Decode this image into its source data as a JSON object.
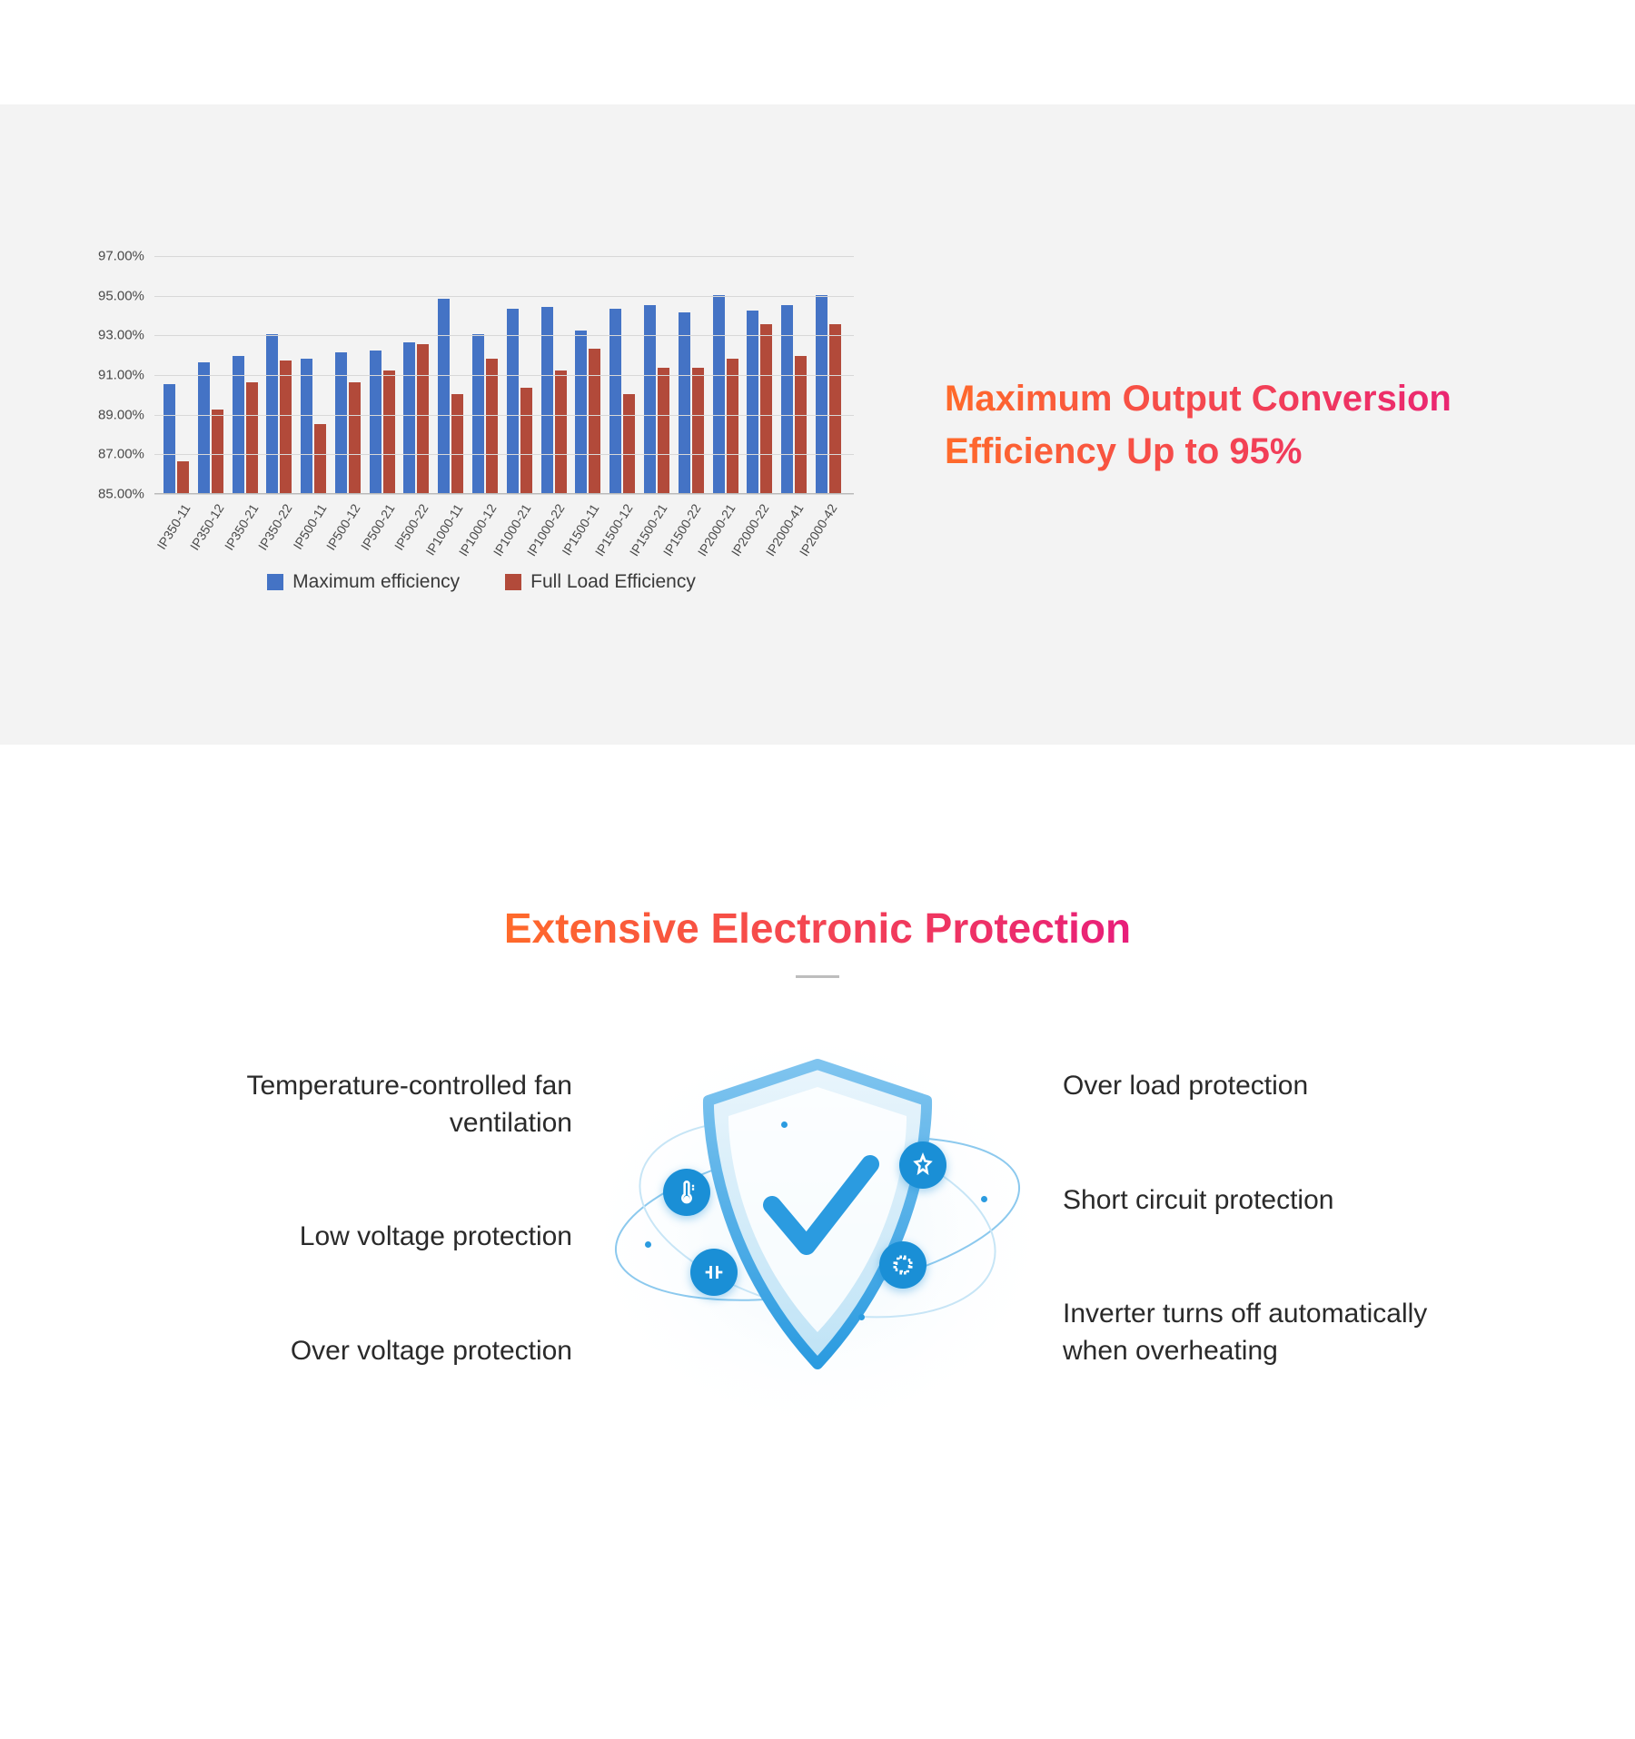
{
  "section1": {
    "title": "Maximum Output Conversion Efficiency Up to 95%",
    "chart": {
      "type": "bar",
      "ylim": [
        85,
        97
      ],
      "ytick_step": 2,
      "yticklabels": [
        "85.00%",
        "87.00%",
        "89.00%",
        "91.00%",
        "93.00%",
        "95.00%",
        "97.00%"
      ],
      "grid_color": "#d8d8d8",
      "axis_color": "#b9b9b9",
      "colors": {
        "max": "#4473c5",
        "full": "#b24a3a"
      },
      "legend": [
        {
          "label": "Maximum efficiency",
          "key": "max"
        },
        {
          "label": "Full Load Efficiency",
          "key": "full"
        }
      ],
      "categories": [
        "IP350-11",
        "IP350-12",
        "IP350-21",
        "IP350-22",
        "IP500-11",
        "IP500-12",
        "IP500-21",
        "IP500-22",
        "IP1000-11",
        "IP1000-12",
        "IP1000-21",
        "IP1000-22",
        "IP1500-11",
        "IP1500-12",
        "IP1500-21",
        "IP1500-22",
        "IP2000-21",
        "IP2000-22",
        "IP2000-41",
        "IP2000-42"
      ],
      "series": {
        "max": [
          90.5,
          91.6,
          91.9,
          93.0,
          91.8,
          92.1,
          92.2,
          92.6,
          94.8,
          93.0,
          94.3,
          94.4,
          93.2,
          94.3,
          94.5,
          94.1,
          95.0,
          94.2,
          94.5,
          95.0
        ],
        "full": [
          86.6,
          89.2,
          90.6,
          91.7,
          88.5,
          90.6,
          91.2,
          92.5,
          90.0,
          91.8,
          90.3,
          91.2,
          92.3,
          90.0,
          91.3,
          91.3,
          91.8,
          93.5,
          91.9,
          93.5
        ]
      }
    }
  },
  "section2": {
    "title": "Extensive Electronic Protection",
    "features_left": [
      "Temperature-controlled fan ventilation",
      "Low voltage protection",
      "Over voltage protection"
    ],
    "features_right": [
      "Over load protection",
      "Short circuit protection",
      "Inverter turns off automatically when overheating"
    ],
    "shield": {
      "primary": "#2b9be0",
      "light": "#bfe3f6",
      "glow": "#e9f5fc"
    }
  }
}
